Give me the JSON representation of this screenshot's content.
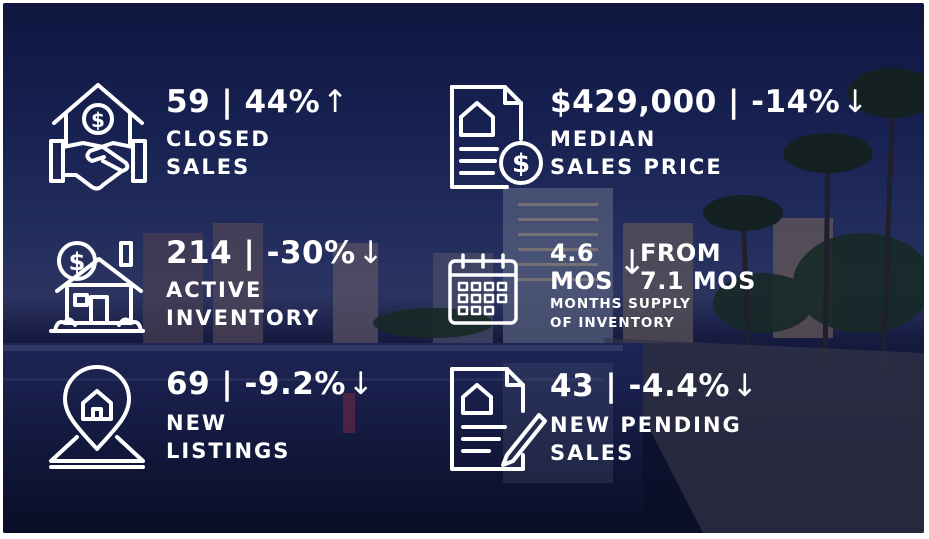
{
  "stats": {
    "closed_sales": {
      "value": "59 | 44%",
      "arrow": "↑",
      "label_line1": "CLOSED",
      "label_line2": "SALES",
      "icon": "house-handshake-icon"
    },
    "median_price": {
      "value": "$429,000 | -14%",
      "arrow": "↓",
      "label_line1": "MEDIAN",
      "label_line2": "SALES PRICE",
      "icon": "document-dollar-icon"
    },
    "active_inventory": {
      "value": "214 | -30%",
      "arrow": "↓",
      "label_line1": "ACTIVE",
      "label_line2": "INVENTORY",
      "icon": "house-dollar-icon"
    },
    "months_supply": {
      "current_value": "4.6",
      "current_unit": "MOS",
      "arrow": "↓",
      "from_label": "FROM",
      "from_value": "7.1 MOS",
      "label_line1": "MONTHS SUPPLY",
      "label_line2": "OF INVENTORY",
      "icon": "calendar-icon"
    },
    "new_listings": {
      "value": "69 | -9.2%",
      "arrow": "↓",
      "label_line1": "NEW",
      "label_line2": "LISTINGS",
      "icon": "map-pin-house-icon"
    },
    "new_pending": {
      "value": "43 | -4.4%",
      "arrow": "↓",
      "label_line1": "NEW PENDING",
      "label_line2": "SALES",
      "icon": "contract-pen-icon"
    }
  },
  "colors": {
    "text": "#ffffff",
    "sky_top": "#141d4c",
    "water": "#0b1027"
  }
}
